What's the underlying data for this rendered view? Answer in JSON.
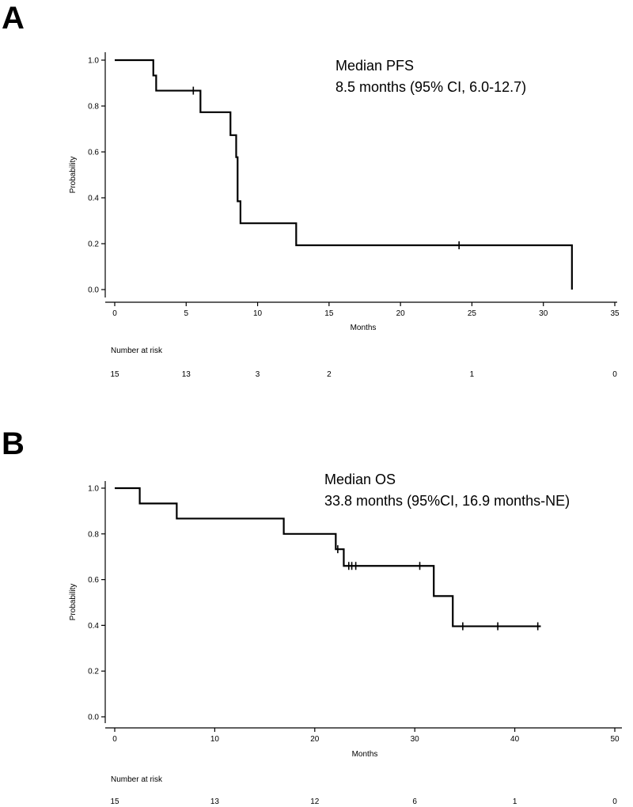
{
  "chart_data": [
    {
      "type": "line",
      "subtype": "kaplan-meier",
      "panel": "A",
      "annotation": [
        "Median PFS",
        "8.5 months (95% CI, 6.0-12.7)"
      ],
      "xlabel": "Months",
      "ylabel": "Probability",
      "xlim": [
        0,
        35
      ],
      "ylim": [
        0,
        1
      ],
      "xticks": [
        "0",
        "5",
        "10",
        "15",
        "20",
        "25",
        "30",
        "35"
      ],
      "yticks": [
        "0.0",
        "0.2",
        "0.4",
        "0.6",
        "0.8",
        "1.0"
      ],
      "steps": [
        [
          0,
          1.0
        ],
        [
          2.7,
          0.933
        ],
        [
          2.9,
          0.867
        ],
        [
          6.0,
          0.773
        ],
        [
          8.1,
          0.673
        ],
        [
          8.5,
          0.577
        ],
        [
          8.6,
          0.385
        ],
        [
          8.8,
          0.289
        ],
        [
          12.7,
          0.193
        ],
        [
          32.0,
          0.0
        ]
      ],
      "censored": [
        [
          5.5,
          0.867
        ],
        [
          24.1,
          0.193
        ]
      ],
      "risk_title": "Number at risk",
      "risk_times": [
        0,
        5,
        10,
        15,
        25,
        35
      ],
      "risk_values": [
        "15",
        "13",
        "3",
        "2",
        "1",
        "0"
      ]
    },
    {
      "type": "line",
      "subtype": "kaplan-meier",
      "panel": "B",
      "annotation": [
        "Median OS",
        "33.8 months (95%CI, 16.9 months-NE)"
      ],
      "xlabel": "Months",
      "ylabel": "Probability",
      "xlim": [
        0,
        50
      ],
      "ylim": [
        0,
        1
      ],
      "xticks": [
        "0",
        "10",
        "20",
        "30",
        "40",
        "50"
      ],
      "yticks": [
        "0.0",
        "0.2",
        "0.4",
        "0.6",
        "0.8",
        "1.0"
      ],
      "steps": [
        [
          0,
          1.0
        ],
        [
          2.5,
          0.933
        ],
        [
          6.2,
          0.867
        ],
        [
          16.9,
          0.8
        ],
        [
          22.1,
          0.733
        ],
        [
          22.9,
          0.66
        ],
        [
          31.9,
          0.528
        ],
        [
          33.8,
          0.396
        ],
        [
          42.6,
          0.396
        ]
      ],
      "censored": [
        [
          22.3,
          0.733
        ],
        [
          23.4,
          0.66
        ],
        [
          23.7,
          0.66
        ],
        [
          24.1,
          0.66
        ],
        [
          30.5,
          0.66
        ],
        [
          34.8,
          0.396
        ],
        [
          38.3,
          0.396
        ],
        [
          42.3,
          0.396
        ]
      ],
      "risk_title": "Number at risk",
      "risk_times": [
        0,
        10,
        20,
        30,
        40,
        50
      ],
      "risk_values": [
        "15",
        "13",
        "12",
        "6",
        "1",
        "0"
      ]
    }
  ]
}
